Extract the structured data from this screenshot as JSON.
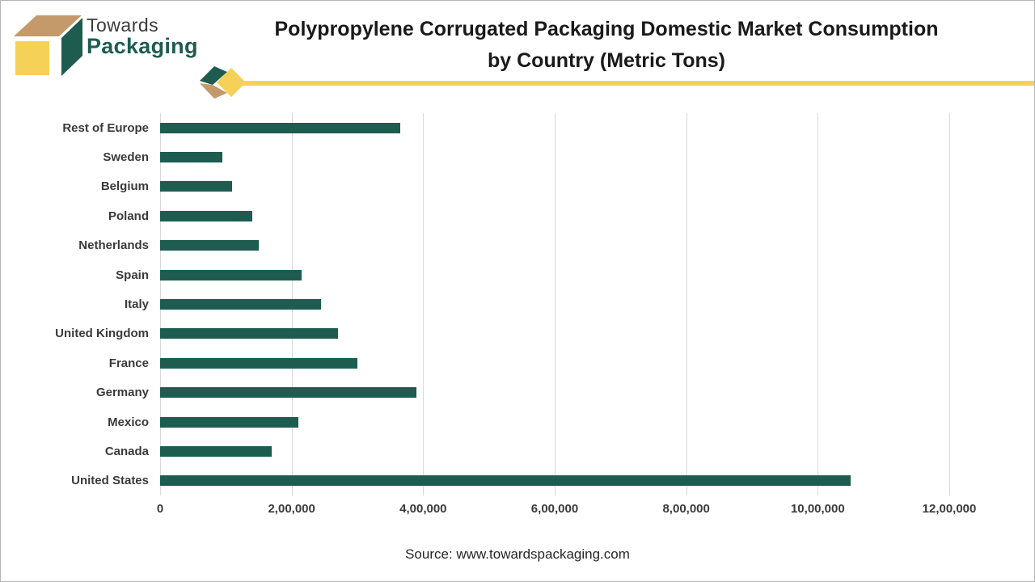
{
  "colors": {
    "green": "#1e5c50",
    "yellow": "#f5d158",
    "tan": "#c49a6b",
    "gridline": "#d9d9d9",
    "title_ink": "#1a1a1a",
    "axis_ink": "#3a3a3a"
  },
  "logo": {
    "line1": "Towards",
    "line2": "Packaging"
  },
  "header": {
    "title_line1": "Polypropylene Corrugated Packaging Domestic Market Consumption",
    "title_line2": "by Country (Metric Tons)"
  },
  "chart_data": {
    "type": "bar",
    "orientation": "horizontal",
    "title": "Polypropylene Corrugated Packaging Domestic Market Consumption by Country (Metric Tons)",
    "xlabel": "",
    "ylabel": "",
    "xlim": [
      0,
      1200000
    ],
    "grid": true,
    "legend": false,
    "bar_color": "#1e5c50",
    "categories_top_to_bottom": [
      "Rest of Europe",
      "Sweden",
      "Belgium",
      "Poland",
      "Netherlands",
      "Spain",
      "Italy",
      "United Kingdom",
      "France",
      "Germany",
      "Mexico",
      "Canada",
      "United States"
    ],
    "values": [
      365000,
      95000,
      110000,
      140000,
      150000,
      215000,
      245000,
      270000,
      300000,
      390000,
      210000,
      170000,
      1050000
    ],
    "x_tick_values": [
      0,
      200000,
      400000,
      600000,
      800000,
      1000000,
      1200000
    ],
    "x_tick_labels": [
      "0",
      "2,00,000",
      "4,00,000",
      "6,00,000",
      "8,00,000",
      "10,00,000",
      "12,00,000"
    ]
  },
  "footer": {
    "source": "Source: www.towardspackaging.com"
  }
}
